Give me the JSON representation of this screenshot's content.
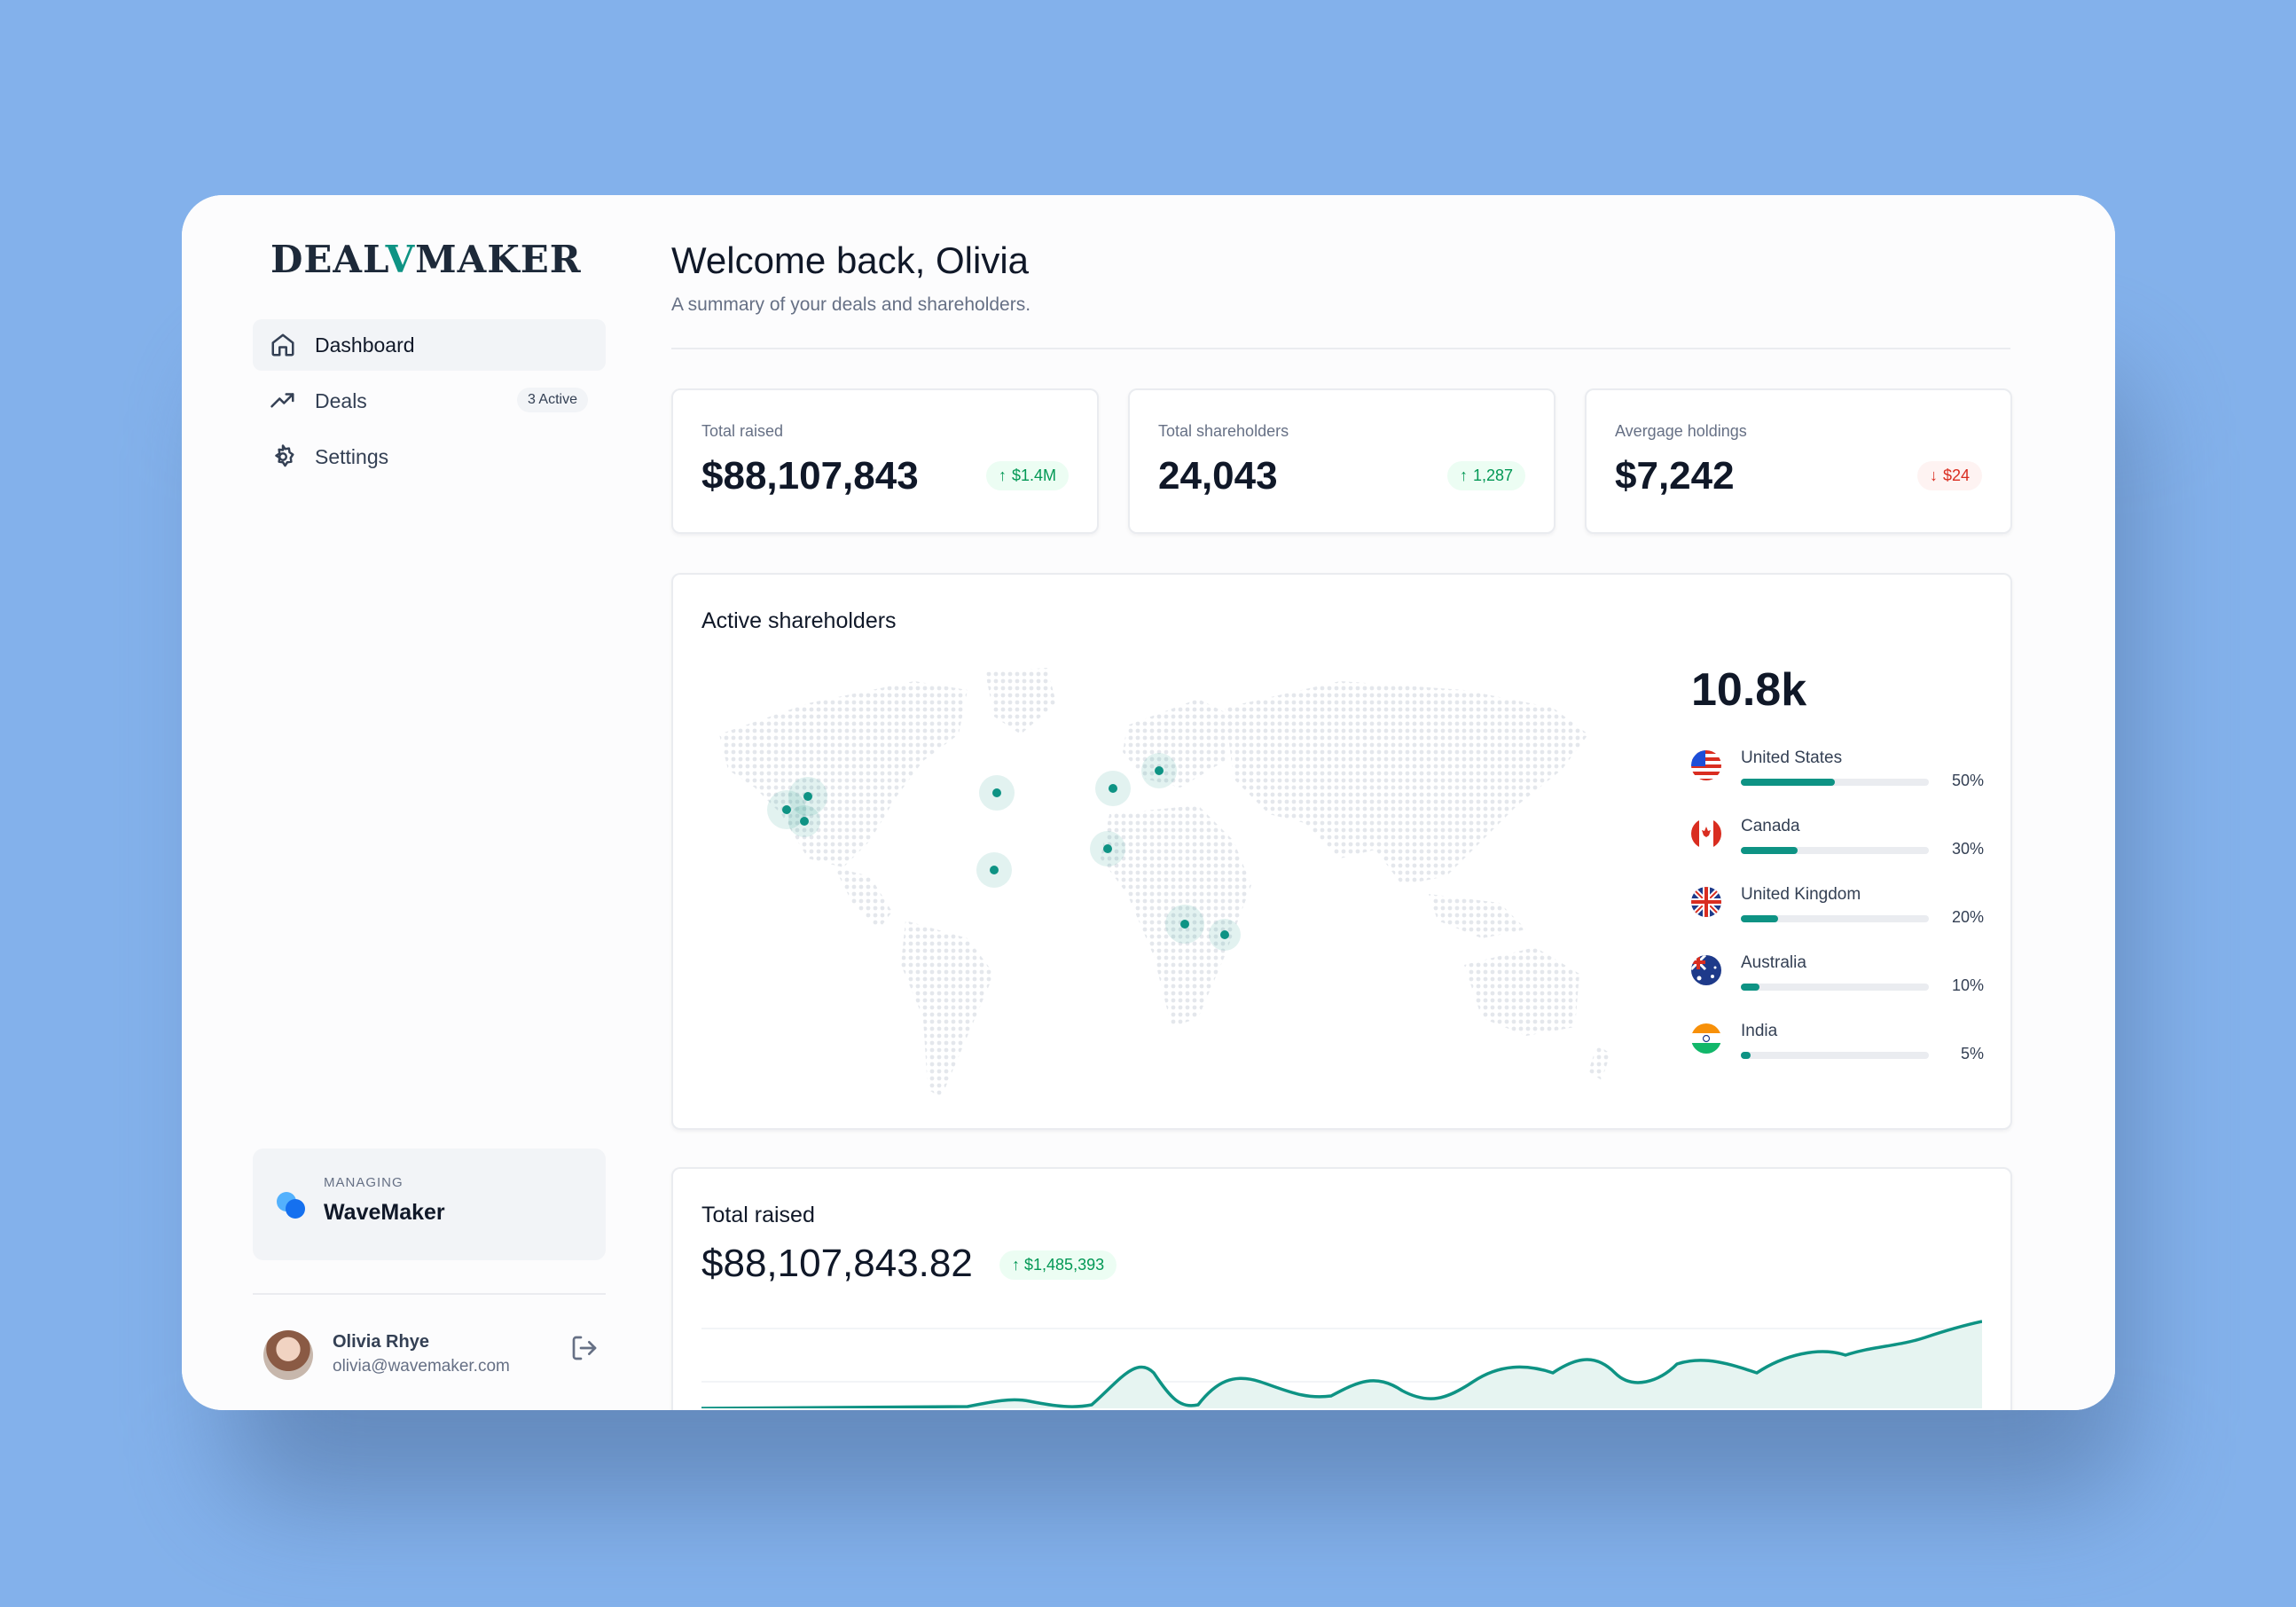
{
  "sidebar": {
    "logo": {
      "pre": "DEAL",
      "v": "V",
      "post": "MAKER"
    },
    "items": [
      {
        "label": "Dashboard",
        "icon": "home-icon",
        "active": true
      },
      {
        "label": "Deals",
        "icon": "trend-icon",
        "badge": "3 Active"
      },
      {
        "label": "Settings",
        "icon": "gear-icon"
      }
    ],
    "managing": {
      "label": "MANAGING",
      "name": "WaveMaker"
    },
    "user": {
      "name": "Olivia Rhye",
      "email": "olivia@wavemaker.com"
    }
  },
  "header": {
    "title": "Welcome back, Olivia",
    "subtitle": "A summary of your deals and shareholders."
  },
  "stats": [
    {
      "label": "Total raised",
      "value": "$88,107,843",
      "change": "$1.4M",
      "direction": "up"
    },
    {
      "label": "Total shareholders",
      "value": "24,043",
      "change": "1,287",
      "direction": "up"
    },
    {
      "label": "Avergage holdings",
      "value": "$7,242",
      "change": "$24",
      "direction": "down"
    }
  ],
  "shareholders_card": {
    "title": "Active shareholders",
    "total": "10.8k",
    "countries": [
      {
        "name": "United States",
        "pct": "50%",
        "value": 0.5,
        "flag": "us-flag"
      },
      {
        "name": "Canada",
        "pct": "30%",
        "value": 0.3,
        "flag": "canada-flag"
      },
      {
        "name": "United Kingdom",
        "pct": "20%",
        "value": 0.2,
        "flag": "uk-flag"
      },
      {
        "name": "Australia",
        "pct": "10%",
        "value": 0.1,
        "flag": "australia-flag"
      },
      {
        "name": "India",
        "pct": "5%",
        "value": 0.05,
        "flag": "india-flag"
      }
    ]
  },
  "raised_card": {
    "title": "Total raised",
    "amount": "$88,107,843.82",
    "change": "$1,485,393",
    "direction": "up"
  },
  "colors": {
    "accent": "#0e9384",
    "up": "#039855",
    "down": "#d92d20",
    "background": "#83b1eb"
  }
}
